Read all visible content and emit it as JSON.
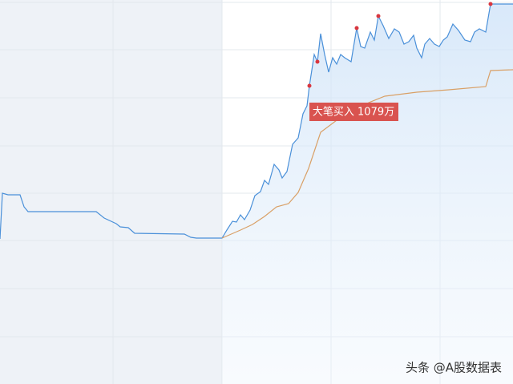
{
  "chart_data": {
    "type": "line",
    "annotation": "大笔买入 1079万",
    "watermark": "头条 @A股数据表",
    "xlim": [
      0,
      640
    ],
    "ylim": [
      0,
      479
    ],
    "xticks": [
      141,
      277,
      413,
      549
    ],
    "yticks": [
      59,
      119,
      179,
      238,
      297,
      357,
      417,
      476
    ],
    "grid": true,
    "series": [
      {
        "color": "#4a90d9",
        "x": [
          0,
          3,
          10,
          25,
          30,
          35,
          120,
          130,
          145,
          150,
          160,
          168,
          230,
          238,
          245,
          277,
          283,
          290,
          295,
          300,
          305,
          312,
          318,
          325,
          330,
          335,
          342,
          348,
          352,
          358,
          365,
          372,
          378,
          383,
          386,
          392,
          396,
          400,
          405,
          410,
          415,
          420,
          425,
          430,
          438,
          445,
          450,
          455,
          462,
          467,
          472,
          478,
          485,
          492,
          498,
          504,
          510,
          516,
          520,
          526,
          530,
          536,
          542,
          548,
          553,
          558,
          565,
          572,
          580,
          587,
          592,
          598,
          606,
          612,
          640
        ],
        "values": [
          181,
          238,
          236,
          236,
          221,
          215,
          215,
          207,
          200,
          196,
          195,
          188,
          187,
          183,
          182,
          182,
          192,
          203,
          202,
          211,
          205,
          217,
          235,
          240,
          254,
          249,
          274,
          267,
          257,
          265,
          299,
          307,
          337,
          347,
          372,
          411,
          402,
          437,
          411,
          389,
          407,
          399,
          411,
          407,
          402,
          444,
          421,
          419,
          439,
          429,
          459,
          447,
          431,
          443,
          439,
          424,
          427,
          435,
          419,
          407,
          424,
          431,
          424,
          421,
          429,
          433,
          449,
          441,
          429,
          427,
          439,
          443,
          439,
          474,
          474
        ],
        "highlights": [
          34,
          36,
          45,
          50,
          73
        ],
        "highlight_color": "#d9363e"
      },
      {
        "color": "#d9a066",
        "x": [
          277,
          300,
          315,
          330,
          345,
          360,
          372,
          385,
          400,
          420,
          440,
          460,
          480,
          520,
          560,
          606,
          612,
          640
        ],
        "values": [
          182,
          192,
          199,
          209,
          221,
          225,
          239,
          269,
          314,
          329,
          339,
          351,
          359,
          364,
          367,
          371,
          391,
          392
        ]
      }
    ]
  }
}
